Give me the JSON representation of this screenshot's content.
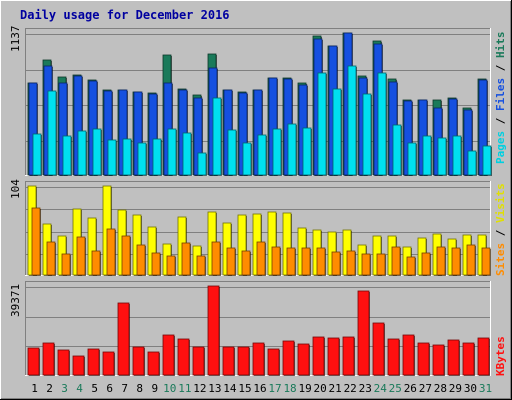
{
  "chart_data": [
    {
      "type": "bar",
      "title": "Daily usage for December 2016",
      "categories": [
        "1",
        "2",
        "3",
        "4",
        "5",
        "6",
        "7",
        "8",
        "9",
        "10",
        "11",
        "12",
        "13",
        "14",
        "15",
        "16",
        "17",
        "18",
        "19",
        "20",
        "21",
        "22",
        "23",
        "24",
        "25",
        "26",
        "27",
        "28",
        "29",
        "30",
        "31"
      ],
      "weekend_days": [
        "3",
        "4",
        "10",
        "11",
        "17",
        "18",
        "24",
        "25",
        "31"
      ],
      "ymax_label": "1137",
      "ymax": 1137,
      "grid": true,
      "legend": [
        "Pages",
        "Files",
        "Hits"
      ],
      "series": [
        {
          "name": "Hits",
          "color": "#1a7a5a",
          "values": [
            740,
            922,
            784,
            800,
            760,
            680,
            680,
            668,
            660,
            960,
            686,
            640,
            970,
            678,
            668,
            680,
            778,
            775,
            740,
            1112,
            1035,
            1137,
            790,
            1075,
            768,
            600,
            600,
            600,
            620,
            540,
            769
          ]
        },
        {
          "name": "Files",
          "color": "#1550e0",
          "values": [
            740,
            870,
            738,
            790,
            756,
            670,
            678,
            668,
            650,
            740,
            680,
            620,
            860,
            678,
            658,
            678,
            778,
            765,
            720,
            1090,
            1035,
            1137,
            780,
            1045,
            748,
            596,
            600,
            540,
            610,
            520,
            759
          ]
        },
        {
          "name": "Pages",
          "color": "#00e0f0",
          "values": [
            330,
            670,
            310,
            350,
            370,
            280,
            290,
            260,
            290,
            370,
            340,
            180,
            620,
            360,
            260,
            320,
            370,
            410,
            380,
            820,
            690,
            870,
            650,
            820,
            400,
            260,
            310,
            300,
            310,
            190,
            230
          ]
        }
      ]
    },
    {
      "type": "bar",
      "ymax_label": "104",
      "ymax": 104,
      "grid": true,
      "legend": [
        "Sites",
        "Visits"
      ],
      "series": [
        {
          "name": "Visits",
          "color": "#ffff00",
          "values": [
            104,
            60,
            46,
            77,
            67,
            104,
            76,
            70,
            56,
            36,
            68,
            34,
            74,
            61,
            70,
            71,
            74,
            73,
            55,
            52,
            50,
            52,
            35,
            45,
            45,
            33,
            43,
            48,
            42,
            47,
            47
          ]
        },
        {
          "name": "Sites",
          "color": "#ff8c00",
          "values": [
            78,
            38,
            25,
            44,
            28,
            54,
            45,
            35,
            26,
            22,
            37,
            22,
            39,
            32,
            28,
            38,
            33,
            32,
            31,
            32,
            27,
            28,
            24,
            25,
            33,
            21,
            26,
            33,
            31,
            35,
            32
          ]
        }
      ]
    },
    {
      "type": "bar",
      "ymax_label": "39371",
      "ymax": 39371,
      "grid": true,
      "legend": [
        "KBytes"
      ],
      "series": [
        {
          "name": "KBytes",
          "color": "#ff1010",
          "values": [
            12100,
            14100,
            11000,
            8400,
            11400,
            10000,
            32000,
            12500,
            10100,
            17600,
            16000,
            12300,
            39371,
            12600,
            12400,
            14300,
            11600,
            15200,
            13900,
            16800,
            16500,
            16800,
            37000,
            23000,
            16100,
            17600,
            14300,
            13400,
            15600,
            14000,
            16200
          ]
        }
      ]
    }
  ]
}
